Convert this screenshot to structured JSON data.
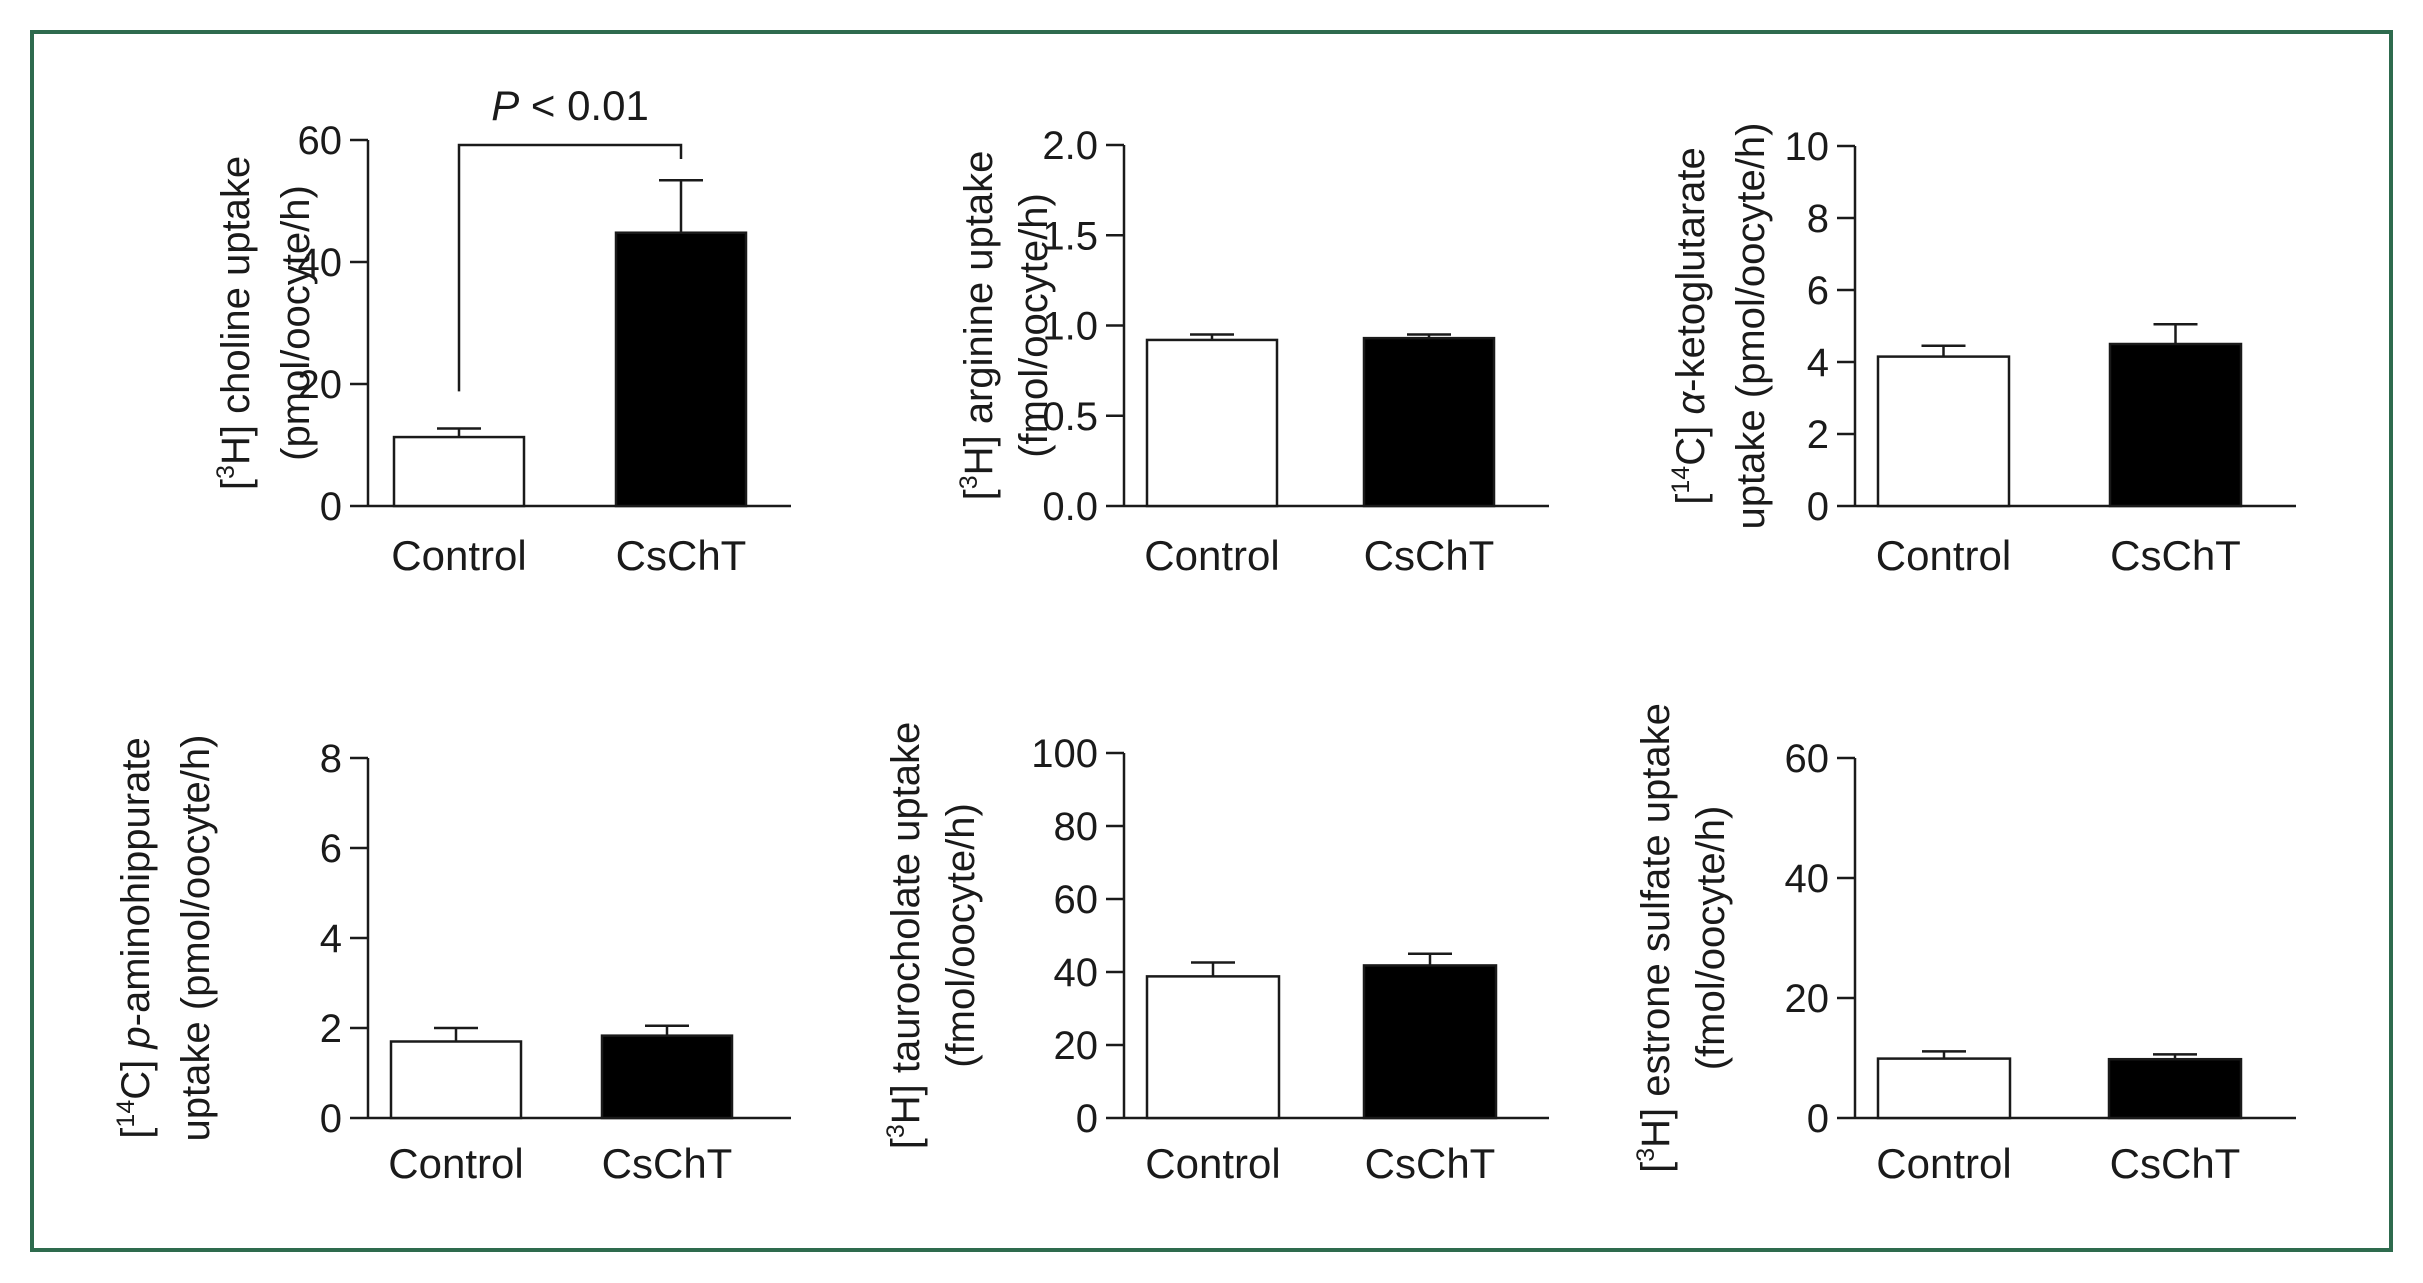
{
  "colors": {
    "frame": "#2e6b4e",
    "ink": "#1a1a1a",
    "control_fill": "#ffffff",
    "treatment_fill": "#000000"
  },
  "chart_data": [
    {
      "type": "bar",
      "panel": "choline",
      "categories": [
        "Control",
        "CsChT"
      ],
      "values": [
        11.3,
        44.8
      ],
      "errors": [
        1.4,
        8.6
      ],
      "ylabel_sup": "3",
      "ylabel_iso": "H",
      "ylabel_italic": "",
      "ylabel_rest": " choline uptake",
      "ylabel_line2": "(pmol/oocyte/h)",
      "ylim": [
        0,
        60
      ],
      "yticks": [
        0,
        20,
        40,
        60
      ],
      "tick_decimals": 0,
      "annotation": {
        "prefix": "P",
        "text": " < 0.01"
      }
    },
    {
      "type": "bar",
      "panel": "arginine",
      "categories": [
        "Control",
        "CsChT"
      ],
      "values": [
        0.92,
        0.93
      ],
      "errors": [
        0.03,
        0.02
      ],
      "ylabel_sup": "3",
      "ylabel_iso": "H",
      "ylabel_italic": "",
      "ylabel_rest": " arginine uptake",
      "ylabel_line2": "(fmol/oocyte/h)",
      "ylim": [
        0,
        2.0
      ],
      "yticks": [
        0,
        0.5,
        1.0,
        1.5,
        2.0
      ],
      "tick_decimals": 1
    },
    {
      "type": "bar",
      "panel": "alpha-ketoglutarate",
      "categories": [
        "Control",
        "CsChT"
      ],
      "values": [
        4.15,
        4.5
      ],
      "errors": [
        0.3,
        0.55
      ],
      "ylabel_sup": "14",
      "ylabel_iso": "C",
      "ylabel_italic": "α",
      "ylabel_rest": "-ketoglutarate",
      "ylabel_line2": "uptake (pmol/oocyte/h)",
      "ylim": [
        0,
        10
      ],
      "yticks": [
        0,
        2,
        4,
        6,
        8,
        10
      ],
      "tick_decimals": 0
    },
    {
      "type": "bar",
      "panel": "p-aminohippurate",
      "categories": [
        "Control",
        "CsChT"
      ],
      "values": [
        1.7,
        1.83
      ],
      "errors": [
        0.3,
        0.22
      ],
      "ylabel_sup": "14",
      "ylabel_iso": "C",
      "ylabel_italic": "p",
      "ylabel_rest": "-aminohippurate",
      "ylabel_line2": "uptake (pmol/oocyte/h)",
      "ylim": [
        0,
        8
      ],
      "yticks": [
        0,
        2,
        4,
        6,
        8
      ],
      "tick_decimals": 0
    },
    {
      "type": "bar",
      "panel": "taurocholate",
      "categories": [
        "Control",
        "CsChT"
      ],
      "values": [
        38.8,
        41.8
      ],
      "errors": [
        3.8,
        3.2
      ],
      "ylabel_sup": "3",
      "ylabel_iso": "H",
      "ylabel_italic": "",
      "ylabel_rest": " taurocholate uptake",
      "ylabel_line2": "(fmol/oocyte/h)",
      "ylim": [
        0,
        100
      ],
      "yticks": [
        0,
        20,
        40,
        60,
        80,
        100
      ],
      "tick_decimals": 0
    },
    {
      "type": "bar",
      "panel": "estrone-sulfate",
      "categories": [
        "Control",
        "CsChT"
      ],
      "values": [
        9.9,
        9.8
      ],
      "errors": [
        1.2,
        0.8
      ],
      "ylabel_sup": "3",
      "ylabel_iso": "H",
      "ylabel_italic": "",
      "ylabel_rest": " estrone sulfate uptake",
      "ylabel_line2": "(fmol/oocyte/h)",
      "ylim": [
        0,
        60
      ],
      "yticks": [
        0,
        20,
        40,
        60
      ],
      "tick_decimals": 0
    }
  ]
}
